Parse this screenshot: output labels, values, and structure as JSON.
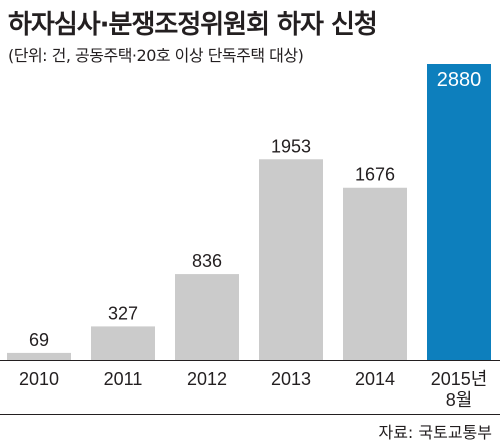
{
  "header": {
    "title": "하자심사·분쟁조정위원회 하자 신청",
    "subtitle": "(단위: 건, 공동주택·20호 이상 단독주택 대상)"
  },
  "footer": {
    "source": "자료: 국토교통부"
  },
  "colors": {
    "bar_default": "#cbcbcb",
    "bar_highlight": "#0d7fbd",
    "value_label_highlight": "#ffffff",
    "text": "#231f20",
    "baseline": "#231f20"
  },
  "chart_data": {
    "type": "bar",
    "title": "하자심사·분쟁조정위원회 하자 신청",
    "subtitle": "(단위: 건, 공동주택·20호 이상 단독주택 대상)",
    "xlabel": "",
    "ylabel": "",
    "categories": [
      [
        "2010"
      ],
      [
        "2011"
      ],
      [
        "2012"
      ],
      [
        "2013"
      ],
      [
        "2014"
      ],
      [
        "2015년",
        "8월"
      ]
    ],
    "values": [
      69,
      327,
      836,
      1953,
      1676,
      2880
    ],
    "value_labels": [
      "69",
      "327",
      "836",
      "1953",
      "1676",
      "2880"
    ],
    "highlight_index": 5,
    "ylim": [
      0,
      2880
    ],
    "grid": false,
    "legend": "none"
  }
}
